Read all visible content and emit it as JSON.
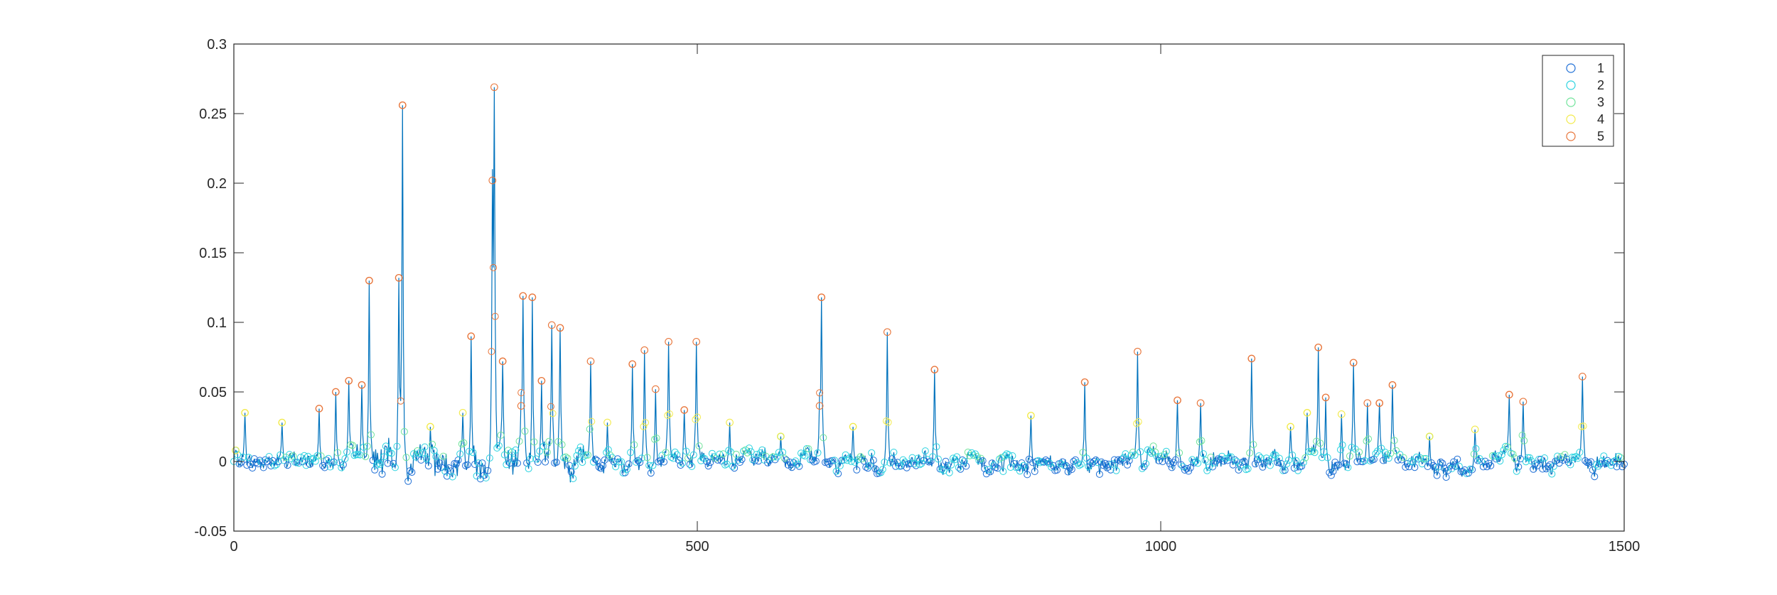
{
  "chart_data": {
    "type": "scatter",
    "title": "",
    "xlabel": "",
    "ylabel": "",
    "xlim": [
      0,
      1500
    ],
    "ylim": [
      -0.05,
      0.3
    ],
    "x_ticks": [
      0,
      500,
      1000,
      1500
    ],
    "x_tick_labels": [
      "0",
      "500",
      "1000",
      "1500"
    ],
    "y_ticks": [
      -0.05,
      0,
      0.05,
      0.1,
      0.15,
      0.2,
      0.25,
      0.3
    ],
    "y_tick_labels": [
      "-0.05",
      "0",
      "0.05",
      "0.1",
      "0.15",
      "0.2",
      "0.25",
      "0.3"
    ],
    "grid": false,
    "legend_position": "top-right",
    "line_color": "#0072bd",
    "marker": "open-circle",
    "series": [
      {
        "name": "1",
        "color": "#1f6fd6"
      },
      {
        "name": "2",
        "color": "#2bd3e0"
      },
      {
        "name": "3",
        "color": "#6fe39a"
      },
      {
        "name": "4",
        "color": "#f2ea4a"
      },
      {
        "name": "5",
        "color": "#e8753a"
      }
    ],
    "peaks": [
      {
        "x": 2,
        "y": 0.008
      },
      {
        "x": 12,
        "y": 0.035
      },
      {
        "x": 52,
        "y": 0.028
      },
      {
        "x": 92,
        "y": 0.038
      },
      {
        "x": 110,
        "y": 0.05
      },
      {
        "x": 124,
        "y": 0.058
      },
      {
        "x": 138,
        "y": 0.055
      },
      {
        "x": 146,
        "y": 0.13
      },
      {
        "x": 178,
        "y": 0.132
      },
      {
        "x": 182,
        "y": 0.256
      },
      {
        "x": 212,
        "y": 0.025
      },
      {
        "x": 247,
        "y": 0.035
      },
      {
        "x": 256,
        "y": 0.09
      },
      {
        "x": 279,
        "y": 0.202
      },
      {
        "x": 281,
        "y": 0.269
      },
      {
        "x": 290,
        "y": 0.072
      },
      {
        "x": 310,
        "y": 0.04
      },
      {
        "x": 312,
        "y": 0.119
      },
      {
        "x": 322,
        "y": 0.118
      },
      {
        "x": 332,
        "y": 0.058
      },
      {
        "x": 343,
        "y": 0.098
      },
      {
        "x": 352,
        "y": 0.096
      },
      {
        "x": 385,
        "y": 0.072
      },
      {
        "x": 403,
        "y": 0.028
      },
      {
        "x": 430,
        "y": 0.07
      },
      {
        "x": 443,
        "y": 0.08
      },
      {
        "x": 455,
        "y": 0.052
      },
      {
        "x": 469,
        "y": 0.086
      },
      {
        "x": 486,
        "y": 0.037
      },
      {
        "x": 499,
        "y": 0.086
      },
      {
        "x": 535,
        "y": 0.028
      },
      {
        "x": 590,
        "y": 0.018
      },
      {
        "x": 632,
        "y": 0.04
      },
      {
        "x": 634,
        "y": 0.118
      },
      {
        "x": 668,
        "y": 0.025
      },
      {
        "x": 705,
        "y": 0.093
      },
      {
        "x": 756,
        "y": 0.066
      },
      {
        "x": 860,
        "y": 0.033
      },
      {
        "x": 918,
        "y": 0.057
      },
      {
        "x": 975,
        "y": 0.079
      },
      {
        "x": 1018,
        "y": 0.044
      },
      {
        "x": 1043,
        "y": 0.042
      },
      {
        "x": 1098,
        "y": 0.074
      },
      {
        "x": 1140,
        "y": 0.025
      },
      {
        "x": 1158,
        "y": 0.035
      },
      {
        "x": 1170,
        "y": 0.082
      },
      {
        "x": 1178,
        "y": 0.046
      },
      {
        "x": 1195,
        "y": 0.034
      },
      {
        "x": 1208,
        "y": 0.071
      },
      {
        "x": 1223,
        "y": 0.042
      },
      {
        "x": 1236,
        "y": 0.042
      },
      {
        "x": 1250,
        "y": 0.055
      },
      {
        "x": 1290,
        "y": 0.018
      },
      {
        "x": 1339,
        "y": 0.023
      },
      {
        "x": 1376,
        "y": 0.048
      },
      {
        "x": 1391,
        "y": 0.043
      },
      {
        "x": 1455,
        "y": 0.061
      }
    ]
  }
}
